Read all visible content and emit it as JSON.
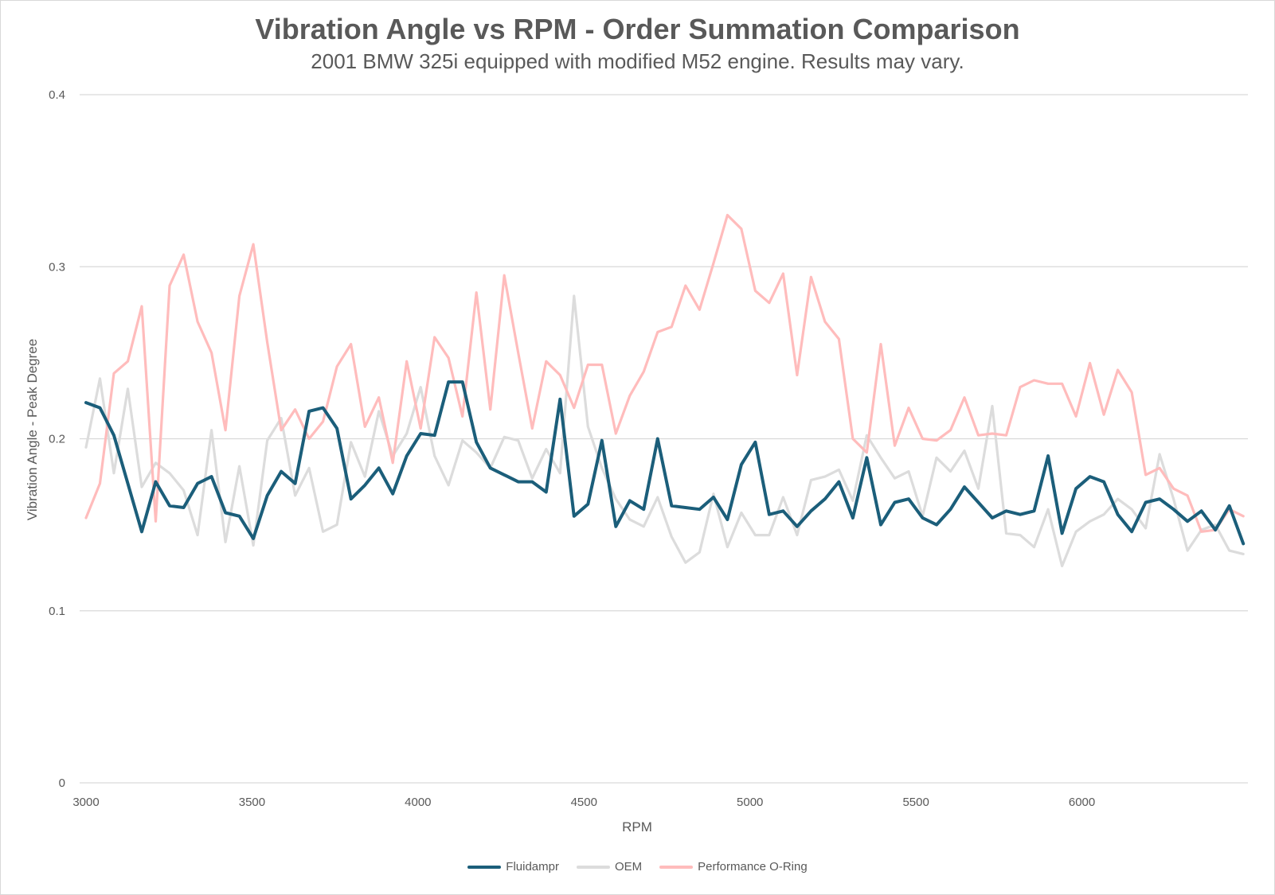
{
  "chart_data": {
    "type": "line",
    "title": "Vibration Angle vs RPM - Order Summation Comparison",
    "subtitle": "2001 BMW 325i equipped with modified M52 engine. Results may vary.",
    "xlabel": "RPM",
    "ylabel": "Vibration Angle - Peak Degree",
    "xlim": [
      3000,
      6500
    ],
    "ylim": [
      0,
      0.4
    ],
    "x_ticks": [
      "3000",
      "3500",
      "4000",
      "4500",
      "5000",
      "5500",
      "6000"
    ],
    "y_ticks": [
      "0",
      "0.1",
      "0.2",
      "0.3",
      "0.4"
    ],
    "grid": "horizontal",
    "legend_position": "bottom",
    "x": [
      3000,
      3042,
      3084,
      3126,
      3168,
      3210,
      3252,
      3294,
      3336,
      3378,
      3420,
      3462,
      3504,
      3546,
      3588,
      3630,
      3672,
      3714,
      3756,
      3798,
      3840,
      3882,
      3924,
      3966,
      4008,
      4050,
      4092,
      4134,
      4176,
      4218,
      4260,
      4302,
      4344,
      4386,
      4428,
      4470,
      4512,
      4554,
      4596,
      4638,
      4680,
      4722,
      4764,
      4806,
      4848,
      4890,
      4932,
      4974,
      5016,
      5058,
      5100,
      5142,
      5184,
      5226,
      5268,
      5310,
      5352,
      5394,
      5436,
      5478,
      5520,
      5562,
      5604,
      5646,
      5688,
      5730,
      5772,
      5814,
      5856,
      5898,
      5940,
      5982,
      6024,
      6066,
      6108,
      6150,
      6192,
      6234,
      6276,
      6318,
      6360,
      6402,
      6444,
      6486
    ],
    "series": [
      {
        "name": "Fluidampr",
        "color": "#1b5e7a",
        "values": [
          0.221,
          0.218,
          0.202,
          0.174,
          0.146,
          0.175,
          0.161,
          0.16,
          0.174,
          0.178,
          0.157,
          0.155,
          0.142,
          0.167,
          0.181,
          0.174,
          0.216,
          0.218,
          0.206,
          0.165,
          0.173,
          0.183,
          0.168,
          0.19,
          0.203,
          0.202,
          0.233,
          0.233,
          0.198,
          0.183,
          0.179,
          0.175,
          0.175,
          0.169,
          0.223,
          0.155,
          0.162,
          0.199,
          0.149,
          0.164,
          0.159,
          0.2,
          0.161,
          0.16,
          0.159,
          0.166,
          0.153,
          0.185,
          0.198,
          0.156,
          0.158,
          0.149,
          0.158,
          0.165,
          0.175,
          0.154,
          0.189,
          0.15,
          0.163,
          0.165,
          0.154,
          0.15,
          0.159,
          0.172,
          0.163,
          0.154,
          0.158,
          0.156,
          0.158,
          0.19,
          0.145,
          0.171,
          0.178,
          0.175,
          0.156,
          0.146,
          0.163,
          0.165,
          0.159,
          0.152,
          0.158,
          0.147,
          0.161,
          0.139
        ]
      },
      {
        "name": "OEM",
        "color": "#dcdcdc",
        "values": [
          0.195,
          0.235,
          0.18,
          0.229,
          0.172,
          0.186,
          0.18,
          0.17,
          0.144,
          0.205,
          0.14,
          0.184,
          0.138,
          0.199,
          0.212,
          0.167,
          0.183,
          0.146,
          0.15,
          0.198,
          0.178,
          0.216,
          0.19,
          0.203,
          0.23,
          0.19,
          0.173,
          0.199,
          0.192,
          0.183,
          0.201,
          0.199,
          0.177,
          0.194,
          0.18,
          0.283,
          0.207,
          0.183,
          0.165,
          0.153,
          0.149,
          0.166,
          0.143,
          0.128,
          0.134,
          0.168,
          0.137,
          0.157,
          0.144,
          0.144,
          0.166,
          0.144,
          0.176,
          0.178,
          0.182,
          0.164,
          0.202,
          0.189,
          0.177,
          0.181,
          0.155,
          0.189,
          0.181,
          0.193,
          0.171,
          0.219,
          0.145,
          0.144,
          0.137,
          0.159,
          0.126,
          0.146,
          0.152,
          0.156,
          0.165,
          0.159,
          0.148,
          0.191,
          0.165,
          0.135,
          0.147,
          0.15,
          0.135,
          0.133
        ]
      },
      {
        "name": "Performance O-Ring",
        "color": "#ffbcbc",
        "values": [
          0.154,
          0.174,
          0.238,
          0.245,
          0.277,
          0.152,
          0.289,
          0.307,
          0.268,
          0.25,
          0.205,
          0.283,
          0.313,
          0.256,
          0.205,
          0.217,
          0.2,
          0.21,
          0.242,
          0.255,
          0.207,
          0.224,
          0.186,
          0.245,
          0.206,
          0.259,
          0.247,
          0.213,
          0.285,
          0.217,
          0.295,
          0.25,
          0.206,
          0.245,
          0.237,
          0.218,
          0.243,
          0.243,
          0.203,
          0.225,
          0.239,
          0.262,
          0.265,
          0.289,
          0.275,
          0.302,
          0.33,
          0.322,
          0.286,
          0.279,
          0.296,
          0.237,
          0.294,
          0.268,
          0.258,
          0.2,
          0.192,
          0.255,
          0.196,
          0.218,
          0.2,
          0.199,
          0.205,
          0.224,
          0.202,
          0.203,
          0.202,
          0.23,
          0.234,
          0.232,
          0.232,
          0.213,
          0.244,
          0.214,
          0.24,
          0.227,
          0.179,
          0.183,
          0.171,
          0.167,
          0.146,
          0.147,
          0.159,
          0.155
        ]
      }
    ]
  }
}
